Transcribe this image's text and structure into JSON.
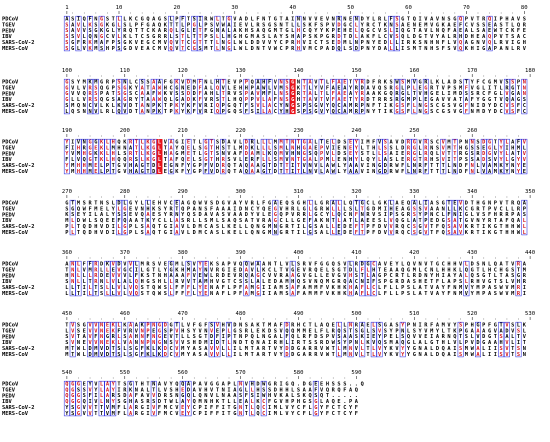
{
  "figure": {
    "sequence_names": [
      "PDCoV",
      "TGEV",
      "PEDV",
      "IBV",
      "SARS-CoV-2",
      "MERS-CoV"
    ],
    "colors": {
      "identical_fill": "#e8141c",
      "identical_text": "#ffffff",
      "similar_text": "#d0121a",
      "box_stroke": "#2a2ae0",
      "other_text": "#000000"
    },
    "blocks": [
      {
        "ruler": [
          "1",
          "10",
          "20",
          "30",
          "40",
          "50",
          "60",
          "70",
          "80",
          "90"
        ],
        "rows": [
          "ASIQFNGSTLLKCGQAGSLPFTSIRWLTGVADLFNTGTAINNVVEVNRNENDYLRLFSGTQIVAVNSGQPVTRQIPHAVS",
          "SAVLKSGKGLSLPFGAQKTTLPGLPSVWAIEVLRSGSNTLLSKFSPVDGCLYRCTKNSAENEMVGKAEFCVSSEASTLQR",
          "SAVVSGKGLYRQTTCKARQLGLETFGNALAKHSAQGMTGLHCQYYKPEHELQGCVSLIQGTAVLNQFAEALSAEWTCKFE",
          "SSVLQNGCVLKLTCSGRRLSTLTTPSLLHGHGMASLAYSHAPSKPGRDTDLAKFLCVSQLDGTVYALRHDHEAQPVTSAC",
          "SGFRKMAFPSGKVEGCMVQVTCGTTTLNGLWLDDVVYCPRHVICTSEDMLNPNYEDLLIRKSNHNFLVQAGNVQLRVIGH",
          "SGLVKMSHPSGDVEACMVQVTCGSMTLNGLWLDNTVWCPRHVMCPADQLSDPNYDALLISMTNHSFSVQKHIGAPANLRV"
        ]
      },
      {
        "ruler": [
          "100",
          "110",
          "120",
          "130",
          "140",
          "150",
          "160",
          "170",
          "180"
        ],
        "rows": [
          "GSYMKMGRPSNLCSSAAFGKVDMFNLHTEVPPQAHFVNSGNTAVTLFAETYRDFRKSWSMVGRLKLADSTYFCGMVSSPN",
          "GVLVRSQGPSGKYATAWHCGNEDFALQVLEHHPAWLVMSGKTLYVFAEAYRDAVQSRGLPLEGRTVPSMFVGLITLRGTN",
          "GVVQRSPATSGSCAAFWKVSSDDFAHLTRVSPAVMFLNSGRTALTLFAEAYRAAKGQRGLTVHGELIMDSSRCFGLVGAN",
          "GLLVRSQGSAGRYTAAWQLGADKFVRSTLHQPPVLAFNSGHTAVTVFAETYRDTRRSRGMPLEGAVVATAFYGGTVQAGS",
          "SMQNCVLKLKVDTANPKTPKYKFVRIQPGQTFSVLACYNGSPSGVYQCAMRPNFTIKGSFLNGSCGSVGFNIDYDCVSFC",
          "LQSNNVLRLQVDTANPKTPKYKFVRIQPGQSFSILACYHGSPSGVYQCAMRPNYTIKGSFLNGSCGSVGFNMDYDCVSFC"
        ]
      },
      {
        "ruler": [
          "190",
          "200",
          "210",
          "220",
          "230",
          "240",
          "250",
          "260"
        ],
        "rows": [
          "YIVNGGKLHQKRTLKGLVAGIETLGTSDAVLDRLLLMMTNTGALTELDSEYIMFVSAVDRGVRSCVMTPNNSDGTYLAFV",
          "FIHRGEKLMHNATLKGLTAYQELSGTHSTLMDKLLLSMLNHGAEPVIENEYLTHLSSLDRGLRNSVMTHGSSEGLYIHML",
          "YVMHGKKLHLSRTLKGLHAGMETLGTSNVAFDAMLKQMVHNGSQPVLDSEYSTLLSAIERGLRQLVTTRGSRDGVYLATV",
          "FLVQGTKLHQQRSLKGLTAFQELSGTHRSVLERFLLSMVNTGALPMLENHYLQYLASLERGTRHSVITPSSADSVYLGYV",
          "YMHHMELPTGVHAGTDLEGNFYGPFVDRQTAQAAGTDTTITVNVLAWLYAAVINGDRWFLNRFTTTLNDFNLVAMKYNYE",
          "YMHHMELPTGVHAGTDLEGKFYGPFVDRQTAQAAGTDTTITLNVLAWLYAAVINGDRWFLNRFTTTLNDFNLVAMKYNYE"
        ]
      },
      {
        "ruler": [
          "270",
          "280",
          "290",
          "300",
          "310",
          "320",
          "330",
          "340",
          "350"
        ],
        "rows": [
          "GTMSRTNSLDLGYLLEHVCEAGQWVSDGVAYVRLFGAEQSGHLLGRALLQTGCLGKLAEQALIASGTEVDTHGNPVTRQA",
          "SGQWFMELYLGEVNHKSYRTQPANSFAAAIDNCYQEGVHRLGLGRWLLLSLTGDMIHEAGSSVAANLLKCGRTPVCLLRP",
          "KSEYILALYSSEVQAESYRNYQSDAVASVAADYVLEGQPVRRLGCYLQCNFNRVSIPSGRSYPNCLFNIGLVSFHRRPAS",
          "MLDWLSQEEFQAATKYCLLASRLLSMLSAQSATVRAGCLLGEFAKNTLATLAEESLVQGLATPEDGSATGVNYRTAFQAL",
          "PLTQDHVDILGPLSAQTGIAVLDMCASLKELLQNGMNGRTILGSALLEDEFTPFDVVRQCSGVTFQSAVKRTIKGTHHWL",
          "PLTQDHVDILGPLSAQTGIAVLDMCASLKELLQNGMNGRTILGSALLEDEFTPFDVVRQCSGVTFQSAVKRTIKGTHHWL"
        ]
      },
      {
        "ruler": [
          "360",
          "370",
          "380",
          "390",
          "400",
          "410",
          "420",
          "430",
          "440"
        ],
        "rows": [
          "ANLFFRDKVDVVLMRSVEGMLSVYEKSAPVQQWAANTLVLSRVFGGQSVLRDGCAVEYLQVNVTGCHHVLDSNLQATVRA",
          "TNLVMRLLEVGCILGTLYGKHMAYNVRGIEDAVLKCLTVGEVRQELSGTDLFLHTEAAQGMLCNLHHKLQGTLHCHGSTM",
          "HNLLLRDEVVVLFKSTNHAAAFVEWLRDEVRQAGCVVRAAGVGLLEVGVHSTLAGPCRTLRDNYHIAYALQSGTLTASGR",
          "SNLLTRNLVLALQHGSHLLRVVTAMHVGTCSSLALEDAMHQSVNQMGRQACNIFSPGRDASHETFLAPSLRHVGTSLVHR",
          "LLTILTSLLVLVQSTQWSLFFFLYENAFLPFAMGIIAMSAFAMMFVKHKHAFLCLFLLPSLATVAYFNMVYMPASWVMRI",
          "LLTILTSLLVLVQSTQWSLFFFLYENAFLPFAMGIIAMSAFAMMFVKHKHAFLCLFLLPSLATVAYFNMVYMPASWVMRI"
        ]
      },
      {
        "ruler": [
          "450",
          "460",
          "470",
          "480",
          "490",
          "500",
          "510",
          "520",
          "530"
        ],
        "rows": [
          "TVSGVVNEKLKAAKPNGDGTLVFGFSVHVDNSAKTMAFDRHCTLAQELLNRAELSGASYPNIRFAMVYSPHGPFGTVSLK",
          "LVSEVVNEKFVRVNPEGSPVHSYVNVEPLGSRLEKDSVQQMMELFLRQSTSGLSVSYPNLSYVMYLTKPGAAAGVADVSL",
          "SVTAVFNGRLSAHNFNGEVTLLSGTDFIPTNPQLNGALFQLRFDSPVSAASKIEYPELSQVVEIARNQTSLVDGTSALTV",
          "SVNEVVNEKLVANNPNGNSVVSHDMIDTLNDTQNAIRHLIRTSSRDWSYPNLKVQSMAQGLALGTHLVLPVDGAAHVLIT",
          "MTWLDMVDTSLSGFKLKDCVMYASAVVLLILMTARTVYDDGARRVWTLMNVLTLVYKVYYGNALDQAISMWALIISVTSN",
          "MTWLDMVDTSLSGFKLKDCVMYASAVVLLILMTARTVYDDGARRVWTLMNVLTLVYKVYYGNALDQAISMWALIISVTSN"
        ]
      },
      {
        "ruler": [
          "540",
          "550",
          "560",
          "570",
          "580",
          "590"
        ],
        "rows": [
          "QGGEYVLAYTSGTHTNAVYQQAPAVGGAPLNVHDWGRIGQ.DGEEHSSS..Q",
          "QGSSVYLAYIRKNALTLVSHEDAVHVTNIAGLLHSSDHHLSAAFVQRQFAQ",
          "QGGSFILARSDAFAVVDRSNGQLQNVLNAASFSIWHVKALSKQSQT.....",
          "QGGQIVLNYSGHASRSDTWLAYQMNHKTLLEALKCFGVHPHGSGLAQE.PA",
          "YSGVVTTVMFLARGIVFMCVEYCPIFFITGNTLQCIMLVYCFLGYFCTCYF",
          "YSGVVTTVMFLARGIVFMCVEYCPIFFITGNTLQCIMLVYCFLGYFCTCYF"
        ]
      }
    ]
  }
}
